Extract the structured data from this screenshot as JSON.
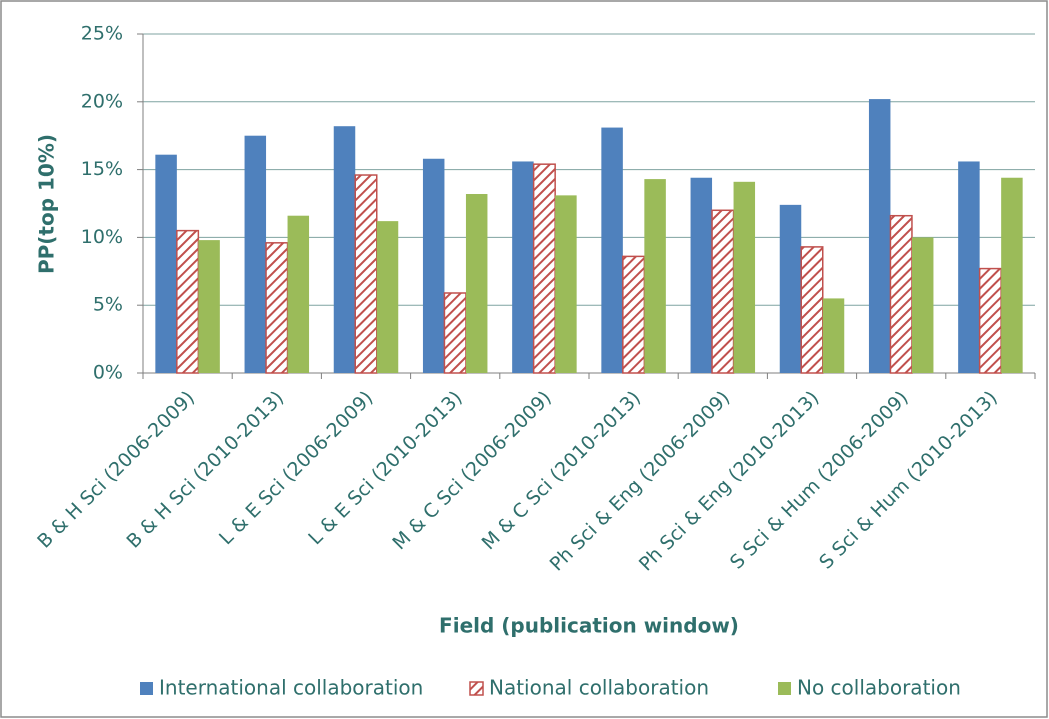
{
  "chart_data": {
    "type": "bar",
    "y_label": "PP(top 10%)",
    "x_label": "Field (publication window)",
    "categories": [
      "B & H Sci (2006-2009)",
      "B & H Sci (2010-2013)",
      "L & E Sci (2006-2009)",
      "L & E Sci (2010-2013)",
      "M & C Sci (2006-2009)",
      "M & C Sci (2010-2013)",
      "Ph Sci & Eng (2006-2009)",
      "Ph Sci & Eng (2010-2013)",
      "S Sci & Hum (2006-2009)",
      "S Sci & Hum (2010-2013)"
    ],
    "series": [
      {
        "name": "International collaboration",
        "color": "#4f81bd",
        "values": [
          16.1,
          17.5,
          18.2,
          15.8,
          15.6,
          18.1,
          14.4,
          12.4,
          20.2,
          15.6
        ]
      },
      {
        "name": "National collaboration",
        "color": "#c0504d",
        "pattern": "hatch",
        "values": [
          10.5,
          9.6,
          14.6,
          5.9,
          15.4,
          8.6,
          12.0,
          9.3,
          11.6,
          7.7
        ]
      },
      {
        "name": "No collaboration",
        "color": "#9bbb59",
        "values": [
          9.8,
          11.6,
          11.2,
          13.2,
          13.1,
          14.3,
          14.1,
          5.5,
          10.0,
          14.4
        ]
      }
    ],
    "ylim": [
      0,
      25
    ],
    "yticks": [
      {
        "value": 0,
        "label": "0%"
      },
      {
        "value": 5,
        "label": "5%"
      },
      {
        "value": 10,
        "label": "10%"
      },
      {
        "value": 15,
        "label": "15%"
      },
      {
        "value": 20,
        "label": "20%"
      },
      {
        "value": 25,
        "label": "25%"
      }
    ],
    "grid": true,
    "legend": "bottom"
  }
}
